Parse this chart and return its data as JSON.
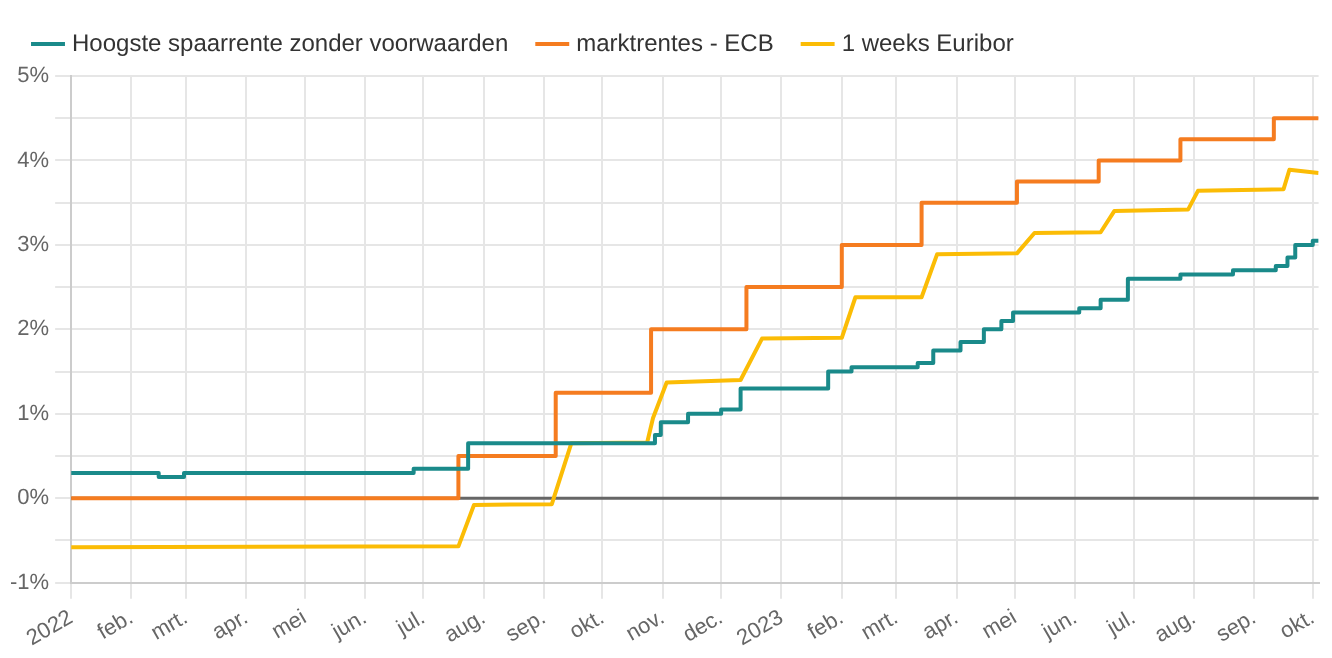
{
  "chart_data": {
    "type": "line",
    "xlim": [
      "2022-01-01",
      "2023-10-04"
    ],
    "xticks": [
      {
        "value": "2022-01-01",
        "label": "2022"
      },
      {
        "value": "2022-02-01",
        "label": "feb."
      },
      {
        "value": "2022-03-01",
        "label": "mrt."
      },
      {
        "value": "2022-04-01",
        "label": "apr."
      },
      {
        "value": "2022-05-01",
        "label": "mei"
      },
      {
        "value": "2022-06-01",
        "label": "jun."
      },
      {
        "value": "2022-07-01",
        "label": "jul."
      },
      {
        "value": "2022-08-01",
        "label": "aug."
      },
      {
        "value": "2022-09-01",
        "label": "sep."
      },
      {
        "value": "2022-10-01",
        "label": "okt."
      },
      {
        "value": "2022-11-01",
        "label": "nov."
      },
      {
        "value": "2022-12-01",
        "label": "dec."
      },
      {
        "value": "2023-01-01",
        "label": "2023"
      },
      {
        "value": "2023-02-01",
        "label": "feb."
      },
      {
        "value": "2023-03-01",
        "label": "mrt."
      },
      {
        "value": "2023-04-01",
        "label": "apr."
      },
      {
        "value": "2023-05-01",
        "label": "mei"
      },
      {
        "value": "2023-06-01",
        "label": "jun."
      },
      {
        "value": "2023-07-01",
        "label": "jul."
      },
      {
        "value": "2023-08-01",
        "label": "aug."
      },
      {
        "value": "2023-09-01",
        "label": "sep."
      },
      {
        "value": "2023-10-01",
        "label": "okt."
      }
    ],
    "ylim": [
      -1,
      5
    ],
    "yticks": [
      {
        "value": -1,
        "label": "-1%"
      },
      {
        "value": -0.5,
        "label": null
      },
      {
        "value": 0,
        "label": "0%"
      },
      {
        "value": 0.5,
        "label": null
      },
      {
        "value": 1,
        "label": "1%"
      },
      {
        "value": 1.5,
        "label": null
      },
      {
        "value": 2,
        "label": "2%"
      },
      {
        "value": 2.5,
        "label": null
      },
      {
        "value": 3,
        "label": "3%"
      },
      {
        "value": 3.5,
        "label": null
      },
      {
        "value": 4,
        "label": "4%"
      },
      {
        "value": 4.5,
        "label": null
      },
      {
        "value": 5,
        "label": "5%"
      }
    ],
    "grid": true,
    "legend": "top",
    "marker": "none",
    "line_style": "solid",
    "ref_lines": [
      {
        "axis": "y",
        "value": 0,
        "color": "#666666"
      }
    ],
    "series": [
      {
        "name": "Hoogste spaarrente zonder voorwaarden",
        "type": "step",
        "color": "#1a8a8a",
        "x": [
          "2022-01-01",
          "2022-02-15",
          "2022-02-28",
          "2022-06-26",
          "2022-07-24",
          "2022-10-28",
          "2022-10-31",
          "2022-11-14",
          "2022-12-01",
          "2022-12-11",
          "2023-01-25",
          "2023-02-06",
          "2023-03-12",
          "2023-03-20",
          "2023-04-03",
          "2023-04-15",
          "2023-04-24",
          "2023-04-30",
          "2023-06-03",
          "2023-06-14",
          "2023-06-28",
          "2023-07-25",
          "2023-08-21",
          "2023-09-12",
          "2023-09-18",
          "2023-09-22",
          "2023-10-01",
          "2023-10-04"
        ],
        "values": [
          0.3,
          0.25,
          0.3,
          0.35,
          0.65,
          0.75,
          0.9,
          1.0,
          1.05,
          1.3,
          1.5,
          1.55,
          1.6,
          1.75,
          1.85,
          2.0,
          2.1,
          2.2,
          2.25,
          2.35,
          2.6,
          2.65,
          2.7,
          2.75,
          2.85,
          3.0,
          3.05,
          3.05
        ]
      },
      {
        "name": "marktrentes - ECB",
        "type": "step",
        "color": "#f57c20",
        "x": [
          "2022-01-01",
          "2022-07-19",
          "2022-09-07",
          "2022-10-26",
          "2022-12-14",
          "2023-02-01",
          "2023-03-14",
          "2023-05-02",
          "2023-06-13",
          "2023-07-25",
          "2023-09-11",
          "2023-10-04"
        ],
        "values": [
          0,
          0.5,
          1.25,
          2.0,
          2.5,
          3.0,
          3.5,
          3.75,
          4.0,
          4.25,
          4.5,
          4.5
        ]
      },
      {
        "name": "1 weeks Euribor",
        "type": "line",
        "color": "#fbbc05",
        "x": [
          "2022-01-01",
          "2022-07-19",
          "2022-07-27",
          "2022-09-05",
          "2022-09-15",
          "2022-10-24",
          "2022-10-27",
          "2022-11-03",
          "2022-12-11",
          "2022-12-22",
          "2023-02-01",
          "2023-02-08",
          "2023-03-14",
          "2023-03-22",
          "2023-05-02",
          "2023-05-11",
          "2023-06-14",
          "2023-06-21",
          "2023-07-29",
          "2023-08-03",
          "2023-09-16",
          "2023-09-19",
          "2023-10-04"
        ],
        "values": [
          -0.58,
          -0.57,
          -0.08,
          -0.07,
          0.65,
          0.66,
          0.95,
          1.37,
          1.4,
          1.89,
          1.9,
          2.38,
          2.38,
          2.89,
          2.9,
          3.14,
          3.15,
          3.4,
          3.42,
          3.64,
          3.66,
          3.89,
          3.85
        ]
      }
    ]
  }
}
